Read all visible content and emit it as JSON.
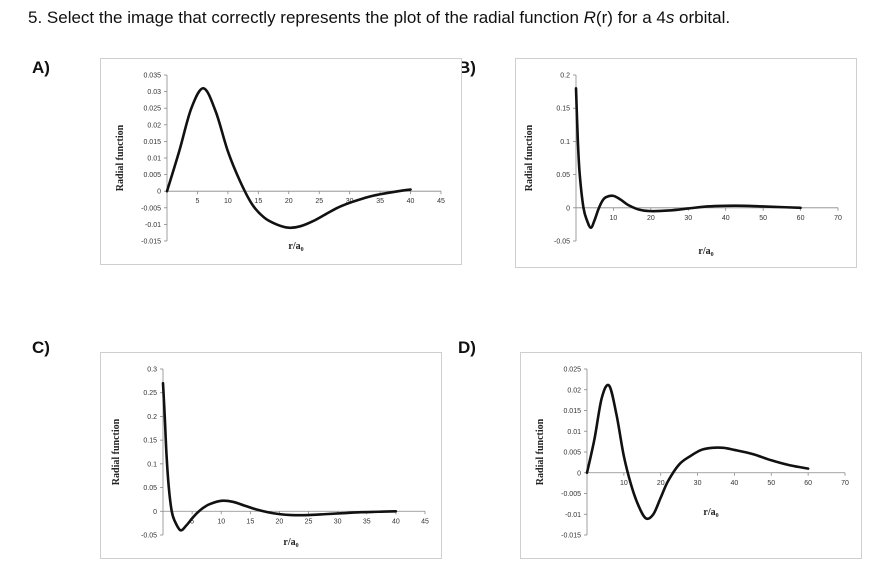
{
  "question": {
    "prefix": "5. Select the image that correctly represents the plot of the radial function ",
    "italic": "R",
    "middle": "(r) for a 4",
    "italic2": "s",
    "suffix": " orbital."
  },
  "chart_data": [
    {
      "id": "A",
      "option_label": "A)",
      "type": "line",
      "ylabel": "Radial function",
      "xlabel": "r/a₀",
      "ylim": [
        -0.015,
        0.035
      ],
      "xlim": [
        0,
        45
      ],
      "yticks": [
        "0.035",
        "0.03",
        "0.025",
        "0.02",
        "0.015",
        "0.01",
        "0.005",
        "0",
        "-0.005",
        "-0.01",
        "-0.015"
      ],
      "ytick_values": [
        0.035,
        0.03,
        0.025,
        0.02,
        0.015,
        0.01,
        0.005,
        0,
        -0.005,
        -0.01,
        -0.015
      ],
      "xticks": [
        "5",
        "10",
        "15",
        "20",
        "25",
        "30",
        "35",
        "40",
        "45"
      ],
      "xtick_values": [
        5,
        10,
        15,
        20,
        25,
        30,
        35,
        40,
        45
      ],
      "series": [
        {
          "name": "R(r)",
          "x": [
            0,
            2,
            4,
            6,
            8,
            10,
            12,
            14,
            16,
            18,
            20,
            22,
            24,
            26,
            28,
            30,
            32,
            34,
            36,
            38,
            40
          ],
          "y": [
            0,
            0.012,
            0.025,
            0.031,
            0.024,
            0.012,
            0.003,
            -0.004,
            -0.008,
            -0.01,
            -0.011,
            -0.0105,
            -0.009,
            -0.007,
            -0.005,
            -0.0035,
            -0.0023,
            -0.0013,
            -0.0006,
            0,
            0.0005
          ]
        }
      ]
    },
    {
      "id": "B",
      "option_label": "B)",
      "type": "line",
      "ylabel": "Radial function",
      "xlabel": "r/a₀",
      "ylim": [
        -0.05,
        0.2
      ],
      "xlim": [
        0,
        70
      ],
      "yticks": [
        "0.2",
        "0.15",
        "0.1",
        "0.05",
        "0",
        "-0.05"
      ],
      "ytick_values": [
        0.2,
        0.15,
        0.1,
        0.05,
        0,
        -0.05
      ],
      "xticks": [
        "10",
        "20",
        "30",
        "40",
        "50",
        "60",
        "70"
      ],
      "xtick_values": [
        10,
        20,
        30,
        40,
        50,
        60,
        70
      ],
      "series": [
        {
          "name": "R(r)",
          "x": [
            0,
            0.5,
            1,
            2,
            3,
            4,
            5,
            6,
            7,
            8,
            10,
            12,
            14,
            17,
            20,
            25,
            30,
            35,
            40,
            45,
            50,
            55,
            60
          ],
          "y": [
            0.18,
            0.1,
            0.05,
            0,
            -0.02,
            -0.03,
            -0.018,
            -0.002,
            0.01,
            0.016,
            0.018,
            0.012,
            0.004,
            -0.003,
            -0.005,
            -0.004,
            -0.001,
            0.002,
            0.003,
            0.003,
            0.002,
            0.001,
            0
          ]
        }
      ]
    },
    {
      "id": "C",
      "option_label": "C)",
      "type": "line",
      "ylabel": "Radial function",
      "xlabel": "r/a₀",
      "ylim": [
        -0.05,
        0.3
      ],
      "xlim": [
        0,
        45
      ],
      "yticks": [
        "0.3",
        "0.25",
        "0.2",
        "0.15",
        "0.1",
        "0.05",
        "0",
        "-0.05"
      ],
      "ytick_values": [
        0.3,
        0.25,
        0.2,
        0.15,
        0.1,
        0.05,
        0,
        -0.05
      ],
      "xticks": [
        "5",
        "10",
        "15",
        "20",
        "25",
        "30",
        "35",
        "40",
        "45"
      ],
      "xtick_values": [
        5,
        10,
        15,
        20,
        25,
        30,
        35,
        40,
        45
      ],
      "series": [
        {
          "name": "R(r)",
          "x": [
            0,
            0.3,
            0.6,
            1,
            1.5,
            2,
            3,
            4,
            5,
            6,
            7,
            8,
            10,
            12,
            14,
            16,
            18,
            20,
            22,
            25,
            28,
            31,
            34,
            37,
            40
          ],
          "y": [
            0.27,
            0.2,
            0.12,
            0.05,
            0,
            -0.02,
            -0.04,
            -0.03,
            -0.015,
            -0.002,
            0.008,
            0.015,
            0.022,
            0.02,
            0.012,
            0.004,
            -0.002,
            -0.006,
            -0.008,
            -0.008,
            -0.006,
            -0.004,
            -0.002,
            -0.001,
            0
          ]
        }
      ]
    },
    {
      "id": "D",
      "option_label": "D)",
      "type": "line",
      "ylabel": "Radial function",
      "xlabel": "r/a₀",
      "ylim": [
        -0.015,
        0.025
      ],
      "xlim": [
        0,
        70
      ],
      "yticks": [
        "0.025",
        "0.02",
        "0.015",
        "0.01",
        "0.005",
        "0",
        "-0.005",
        "-0.01",
        "-0.015"
      ],
      "ytick_values": [
        0.025,
        0.02,
        0.015,
        0.01,
        0.005,
        0,
        -0.005,
        -0.01,
        -0.015
      ],
      "xticks": [
        "10",
        "20",
        "30",
        "40",
        "50",
        "60",
        "70"
      ],
      "xtick_values": [
        10,
        20,
        30,
        40,
        50,
        60,
        70
      ],
      "series": [
        {
          "name": "R(r)",
          "x": [
            0,
            2,
            4,
            6,
            8,
            10,
            12,
            14,
            16,
            18,
            20,
            22,
            25,
            28,
            31,
            34,
            37,
            40,
            45,
            50,
            55,
            60
          ],
          "y": [
            0,
            0.008,
            0.018,
            0.021,
            0.014,
            0.004,
            -0.003,
            -0.008,
            -0.011,
            -0.01,
            -0.006,
            -0.002,
            0.002,
            0.004,
            0.0055,
            0.006,
            0.006,
            0.0055,
            0.0045,
            0.003,
            0.0018,
            0.001
          ]
        }
      ]
    }
  ]
}
